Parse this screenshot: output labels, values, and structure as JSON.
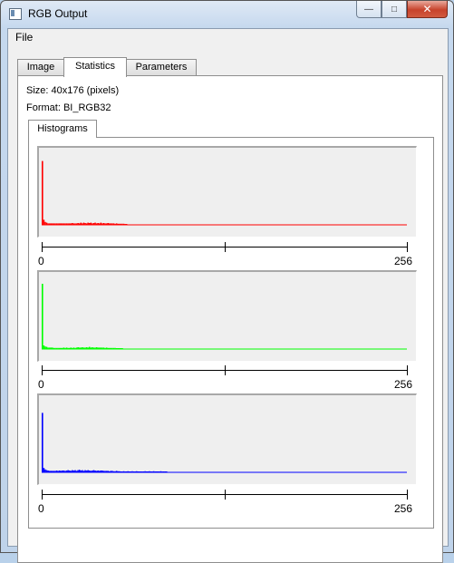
{
  "window": {
    "title": "RGB Output",
    "icon": "window-app-icon"
  },
  "menu": [
    "File"
  ],
  "tabs": [
    {
      "label": "Image"
    },
    {
      "label": "Statistics",
      "active": true
    },
    {
      "label": "Parameters"
    }
  ],
  "info": {
    "size": "Size: 40x176 (pixels)",
    "format": "Format: BI_RGB32"
  },
  "subtab": "Histograms",
  "histograms": [
    {
      "channel": "red",
      "color": "#ff0000",
      "xmin_label": "0",
      "xmax_label": "256"
    },
    {
      "channel": "green",
      "color": "#00ff00",
      "xmin_label": "0",
      "xmax_label": "256"
    },
    {
      "channel": "blue",
      "color": "#0000ff",
      "xmin_label": "0",
      "xmax_label": "256"
    }
  ],
  "chart_data": [
    {
      "type": "bar",
      "series": [
        {
          "name": "",
          "color": "#ff0000",
          "values": [
            0.88,
            0.07,
            0.04,
            0.03,
            0.02,
            0.02,
            0.02,
            0.02,
            0.02,
            0.02,
            0.02,
            0.02,
            0.02,
            0.02,
            0.02,
            0.02,
            0.02,
            0.02,
            0.02,
            0.02,
            0.02,
            0.025,
            0.02,
            0.02,
            0.02,
            0.025,
            0.02,
            0.03,
            0.02,
            0.03,
            0.025,
            0.02,
            0.03,
            0.025,
            0.03,
            0.02,
            0.025,
            0.03,
            0.02,
            0.025,
            0.02,
            0.03,
            0.02,
            0.025,
            0.02,
            0.02,
            0.025,
            0.02,
            0.02,
            0.02,
            0.02,
            0.015,
            0.02,
            0.015,
            0.015,
            0.015,
            0.015,
            0.015,
            0.01,
            0.01
          ]
        }
      ],
      "xlim": [
        0,
        256
      ]
    },
    {
      "type": "bar",
      "series": [
        {
          "name": "",
          "color": "#00ff00",
          "values": [
            0.9,
            0.05,
            0.035,
            0.03,
            0.02,
            0.02,
            0.02,
            0.02,
            0.015,
            0.015,
            0.015,
            0.015,
            0.015,
            0.015,
            0.015,
            0.02,
            0.015,
            0.02,
            0.015,
            0.015,
            0.02,
            0.015,
            0.02,
            0.015,
            0.02,
            0.025,
            0.02,
            0.02,
            0.025,
            0.02,
            0.02,
            0.025,
            0.02,
            0.03,
            0.02,
            0.025,
            0.02,
            0.02,
            0.025,
            0.02,
            0.02,
            0.02,
            0.02,
            0.02,
            0.015,
            0.02,
            0.015,
            0.015,
            0.015,
            0.015,
            0.015,
            0.015,
            0.01,
            0.01,
            0.01,
            0.01,
            0.01
          ]
        }
      ],
      "xlim": [
        0,
        256
      ]
    },
    {
      "type": "bar",
      "series": [
        {
          "name": "",
          "color": "#0000ff",
          "values": [
            0.82,
            0.06,
            0.04,
            0.03,
            0.025,
            0.02,
            0.02,
            0.02,
            0.02,
            0.02,
            0.025,
            0.02,
            0.025,
            0.02,
            0.025,
            0.025,
            0.02,
            0.025,
            0.03,
            0.025,
            0.02,
            0.03,
            0.025,
            0.03,
            0.02,
            0.03,
            0.035,
            0.025,
            0.03,
            0.02,
            0.03,
            0.025,
            0.03,
            0.025,
            0.02,
            0.025,
            0.03,
            0.025,
            0.02,
            0.025,
            0.02,
            0.025,
            0.025,
            0.02,
            0.02,
            0.02,
            0.02,
            0.015,
            0.02,
            0.02,
            0.015,
            0.015,
            0.02,
            0.015,
            0.015,
            0.01,
            0.01,
            0.015,
            0.01,
            0.01,
            0.015,
            0.01,
            0.01,
            0.015,
            0.01,
            0.01,
            0.015,
            0.01,
            0.01,
            0.01,
            0.01,
            0.01,
            0.015,
            0.01,
            0.01,
            0.015,
            0.01,
            0.01,
            0.015,
            0.01,
            0.01,
            0.01,
            0.01,
            0.015,
            0.01,
            0.01,
            0.01,
            0.01
          ]
        }
      ],
      "xlim": [
        0,
        256
      ]
    }
  ]
}
